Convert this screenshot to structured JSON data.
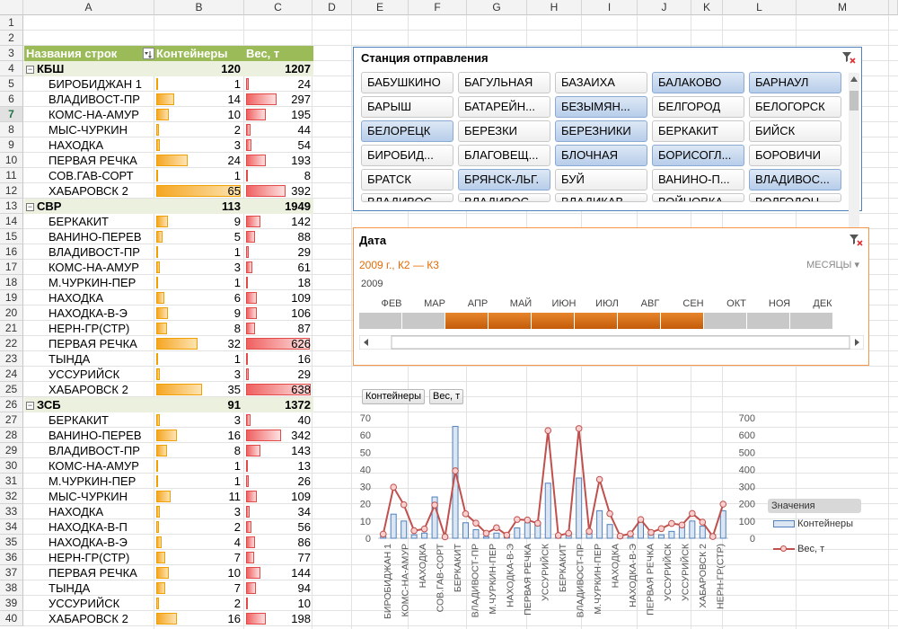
{
  "columns": [
    "A",
    "B",
    "C",
    "D",
    "E",
    "F",
    "G",
    "H",
    "I",
    "J",
    "K",
    "L",
    "M"
  ],
  "rows": [
    "1",
    "2",
    "3",
    "4",
    "5",
    "6",
    "7",
    "8",
    "9",
    "10",
    "11",
    "12",
    "13",
    "14",
    "15",
    "16",
    "17",
    "18",
    "19",
    "20",
    "21",
    "22",
    "23",
    "24",
    "25",
    "26",
    "27",
    "28",
    "29",
    "30",
    "31",
    "32",
    "33",
    "34",
    "35",
    "36",
    "37",
    "38",
    "39",
    "40"
  ],
  "pivot": {
    "header": {
      "rows_label": "Названия строк",
      "col_b": "Контейнеры",
      "col_c": "Вес, т"
    },
    "max_b": 65,
    "max_c": 638,
    "groups": [
      {
        "name": "КБШ",
        "b": 120,
        "c": 1207,
        "items": [
          {
            "name": "БИРОБИДЖАН 1",
            "b": 1,
            "c": 24
          },
          {
            "name": "ВЛАДИВОСТ-ПР",
            "b": 14,
            "c": 297
          },
          {
            "name": "КОМС-НА-АМУР",
            "b": 10,
            "c": 195
          },
          {
            "name": "МЫС-ЧУРКИН",
            "b": 2,
            "c": 44
          },
          {
            "name": "НАХОДКА",
            "b": 3,
            "c": 54
          },
          {
            "name": "ПЕРВАЯ РЕЧКА",
            "b": 24,
            "c": 193
          },
          {
            "name": "СОВ.ГАВ-СОРТ",
            "b": 1,
            "c": 8
          },
          {
            "name": "ХАБАРОВСК 2",
            "b": 65,
            "c": 392
          }
        ]
      },
      {
        "name": "СВР",
        "b": 113,
        "c": 1949,
        "items": [
          {
            "name": "БЕРКАКИТ",
            "b": 9,
            "c": 142
          },
          {
            "name": "ВАНИНО-ПЕРЕВ",
            "b": 5,
            "c": 88
          },
          {
            "name": "ВЛАДИВОСТ-ПР",
            "b": 1,
            "c": 29
          },
          {
            "name": "КОМС-НА-АМУР",
            "b": 3,
            "c": 61
          },
          {
            "name": "М.ЧУРКИН-ПЕР",
            "b": 1,
            "c": 18
          },
          {
            "name": "НАХОДКА",
            "b": 6,
            "c": 109
          },
          {
            "name": "НАХОДКА-В-Э",
            "b": 9,
            "c": 106
          },
          {
            "name": "НЕРН-ГР(СТР)",
            "b": 8,
            "c": 87
          },
          {
            "name": "ПЕРВАЯ РЕЧКА",
            "b": 32,
            "c": 626
          },
          {
            "name": "ТЫНДА",
            "b": 1,
            "c": 16
          },
          {
            "name": "УССУРИЙСК",
            "b": 3,
            "c": 29
          },
          {
            "name": "ХАБАРОВСК 2",
            "b": 35,
            "c": 638
          }
        ]
      },
      {
        "name": "ЗСБ",
        "b": 91,
        "c": 1372,
        "items": [
          {
            "name": "БЕРКАКИТ",
            "b": 3,
            "c": 40
          },
          {
            "name": "ВАНИНО-ПЕРЕВ",
            "b": 16,
            "c": 342
          },
          {
            "name": "ВЛАДИВОСТ-ПР",
            "b": 8,
            "c": 143
          },
          {
            "name": "КОМС-НА-АМУР",
            "b": 1,
            "c": 13
          },
          {
            "name": "М.ЧУРКИН-ПЕР",
            "b": 1,
            "c": 26
          },
          {
            "name": "МЫС-ЧУРКИН",
            "b": 11,
            "c": 109
          },
          {
            "name": "НАХОДКА",
            "b": 3,
            "c": 34
          },
          {
            "name": "НАХОДКА-В-П",
            "b": 2,
            "c": 56
          },
          {
            "name": "НАХОДКА-В-Э",
            "b": 4,
            "c": 86
          },
          {
            "name": "НЕРН-ГР(СТР)",
            "b": 7,
            "c": 77
          },
          {
            "name": "ПЕРВАЯ РЕЧКА",
            "b": 10,
            "c": 144
          },
          {
            "name": "ТЫНДА",
            "b": 7,
            "c": 94
          },
          {
            "name": "УССУРИЙСК",
            "b": 2,
            "c": 10
          },
          {
            "name": "ХАБАРОВСК 2",
            "b": 16,
            "c": 198
          }
        ]
      }
    ]
  },
  "slicer": {
    "title": "Станция отправления",
    "clear_icon": "filter-clear-icon",
    "buttons": [
      {
        "label": "БАБУШКИНО",
        "on": false
      },
      {
        "label": "БАГУЛЬНАЯ",
        "on": false
      },
      {
        "label": "БАЗАИХА",
        "on": false
      },
      {
        "label": "БАЛАКОВО",
        "on": true
      },
      {
        "label": "БАРНАУЛ",
        "on": true
      },
      {
        "label": "БАРЫШ",
        "on": false
      },
      {
        "label": "БАТАРЕЙН...",
        "on": false
      },
      {
        "label": "БЕЗЫМЯН...",
        "on": true
      },
      {
        "label": "БЕЛГОРОД",
        "on": false
      },
      {
        "label": "БЕЛОГОРСК",
        "on": false
      },
      {
        "label": "БЕЛОРЕЦК",
        "on": true
      },
      {
        "label": "БЕРЕЗКИ",
        "on": false
      },
      {
        "label": "БЕРЕЗНИКИ",
        "on": true
      },
      {
        "label": "БЕРКАКИТ",
        "on": false
      },
      {
        "label": "БИЙСК",
        "on": false
      },
      {
        "label": "БИРОБИД...",
        "on": false
      },
      {
        "label": "БЛАГОВЕЩ...",
        "on": false
      },
      {
        "label": "БЛОЧНАЯ",
        "on": true
      },
      {
        "label": "БОРИСОГЛ...",
        "on": true
      },
      {
        "label": "БОРОВИЧИ",
        "on": false
      },
      {
        "label": "БРАТСК",
        "on": false
      },
      {
        "label": "БРЯНСК-ЛЬГ.",
        "on": true
      },
      {
        "label": "БУЙ",
        "on": false
      },
      {
        "label": "ВАНИНО-П...",
        "on": false
      },
      {
        "label": "ВЛАДИВОС...",
        "on": true
      },
      {
        "label": "ВЛАДИВОС...",
        "on": false
      },
      {
        "label": "ВЛАДИВОС...",
        "on": false
      },
      {
        "label": "ВЛАДИКАВ...",
        "on": false
      },
      {
        "label": "ВОЙНОВКА",
        "on": false
      },
      {
        "label": "ВОЛГОДОН...",
        "on": false
      }
    ]
  },
  "timeline": {
    "title": "Дата",
    "range": "2009 г., К2 — К3",
    "level": "МЕСЯЦЫ",
    "year": "2009",
    "months": [
      "ФЕВ",
      "МАР",
      "АПР",
      "МАЙ",
      "ИЮН",
      "ИЮЛ",
      "АВГ",
      "СЕН",
      "ОКТ",
      "НОЯ",
      "ДЕК"
    ],
    "selected": [
      false,
      false,
      true,
      true,
      true,
      true,
      true,
      true,
      false,
      false,
      false
    ]
  },
  "chart_data": {
    "type": "bar",
    "field_buttons": [
      "Контейнеры",
      "Вес, т"
    ],
    "legend_title": "Значения",
    "categories": [
      "БИРОБИДЖАН 1",
      "ВЛАДИВОСТ-ПР",
      "КОМС-НА-АМУР",
      "МЫС-ЧУРКИН",
      "НАХОДКА",
      "ПЕРВАЯ РЕЧКА",
      "СОВ.ГАВ-СОРТ",
      "ХАБАРОВСК 2",
      "БЕРКАКИТ",
      "ВАНИНО-ПЕРЕВ",
      "ВЛАДИВОСТ-ПР",
      "КОМС-НА-АМУР",
      "М.ЧУРКИН-ПЕР",
      "НАХОДКА",
      "НАХОДКА-В-Э",
      "НЕРН-ГР(СТР)",
      "ПЕРВАЯ РЕЧКА",
      "ТЫНДА",
      "УССУРИЙСК",
      "ХАБАРОВСК 2",
      "БЕРКАКИТ",
      "ВАНИНО-ПЕРЕВ",
      "ВЛАДИВОСТ-ПР",
      "КОМС-НА-АМУР",
      "М.ЧУРКИН-ПЕР",
      "МЫС-ЧУРКИН",
      "НАХОДКА",
      "НАХОДКА-В-П",
      "НАХОДКА-В-Э",
      "НЕРН-ГР(СТР)",
      "ПЕРВАЯ РЕЧКА",
      "ТЫНДА",
      "УССУРИЙСК",
      "ХАБАРОВСК 2"
    ],
    "x_labels_shown": [
      "БИРОБИДЖАН 1",
      "КОМС-НА-АМУР",
      "НАХОДКА",
      "СОВ.ГАВ-СОРТ",
      "БЕРКАКИТ",
      "ВЛАДИВОСТ-ПР",
      "М.ЧУРКИН-ПЕР",
      "НАХОДКА-В-Э",
      "ПЕРВАЯ РЕЧКА",
      "УССУРИЙСК",
      "БЕРКАКИТ",
      "ВЛАДИВОСТ-ПР",
      "М.ЧУРКИН-ПЕР",
      "НАХОДКА",
      "НАХОДКА-В-Э",
      "ПЕРВАЯ РЕЧКА",
      "УССУРИЙСК",
      "УССУРИЙСК",
      "ХАБАРОВСК 2",
      "НЕРН-ГР(СТР)"
    ],
    "series": [
      {
        "name": "Контейнеры",
        "axis": "left",
        "kind": "bar",
        "color": "#4f81bd",
        "values": [
          1,
          14,
          10,
          2,
          3,
          24,
          1,
          65,
          9,
          5,
          1,
          3,
          1,
          6,
          9,
          8,
          32,
          1,
          3,
          35,
          3,
          16,
          8,
          1,
          1,
          11,
          3,
          2,
          4,
          7,
          10,
          7,
          2,
          16
        ]
      },
      {
        "name": "Вес, т",
        "axis": "right",
        "kind": "line",
        "color": "#c0504d",
        "values": [
          24,
          297,
          195,
          44,
          54,
          193,
          8,
          392,
          142,
          88,
          29,
          61,
          18,
          109,
          106,
          87,
          626,
          16,
          29,
          638,
          40,
          342,
          143,
          13,
          26,
          109,
          34,
          56,
          86,
          77,
          144,
          94,
          10,
          198
        ]
      }
    ],
    "ylim_left": [
      0,
      70
    ],
    "yticks_left": [
      0,
      10,
      20,
      30,
      40,
      50,
      60,
      70
    ],
    "ylim_right": [
      0,
      700
    ],
    "yticks_right": [
      0,
      100,
      200,
      300,
      400,
      500,
      600,
      700
    ]
  }
}
